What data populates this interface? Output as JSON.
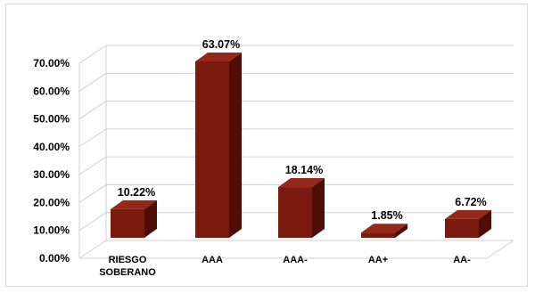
{
  "chart_data": {
    "type": "bar",
    "style": "3d-column",
    "categories": [
      "RIESGO SOBERANO",
      "AAA",
      "AAA-",
      "AA+",
      "AA-"
    ],
    "values": [
      10.22,
      63.07,
      18.14,
      1.85,
      6.72
    ],
    "data_labels": [
      "10.22%",
      "63.07%",
      "18.14%",
      "1.85%",
      "6.72%"
    ],
    "y_ticks": [
      "0.00%",
      "10.00%",
      "20.00%",
      "30.00%",
      "40.00%",
      "50.00%",
      "60.00%",
      "70.00%"
    ],
    "ylim": [
      0,
      70
    ],
    "grid": true,
    "legend": "none",
    "title": "",
    "xlabel": "",
    "ylabel": "",
    "colors": {
      "bar_front": "#7a1a0f",
      "bar_top": "#94281a",
      "bar_side": "#4e0d06",
      "gridline": "#d0d0d0"
    }
  }
}
